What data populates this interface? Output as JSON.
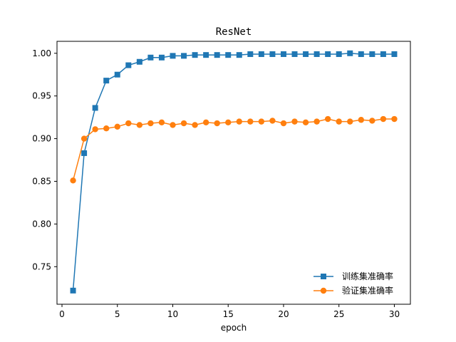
{
  "chart_data": {
    "type": "line",
    "title": "ResNet",
    "xlabel": "epoch",
    "ylabel": "",
    "xlim": [
      -0.45,
      31.45
    ],
    "ylim": [
      0.706,
      1.014
    ],
    "xticks": [
      0,
      5,
      10,
      15,
      20,
      25,
      30
    ],
    "yticks": [
      0.75,
      0.8,
      0.85,
      0.9,
      0.95,
      1.0
    ],
    "ytick_labels": [
      "0.75",
      "0.80",
      "0.85",
      "0.90",
      "0.95",
      "1.00"
    ],
    "grid": false,
    "legend_position": "lower right",
    "x": [
      1,
      2,
      3,
      4,
      5,
      6,
      7,
      8,
      9,
      10,
      11,
      12,
      13,
      14,
      15,
      16,
      17,
      18,
      19,
      20,
      21,
      22,
      23,
      24,
      25,
      26,
      27,
      28,
      29,
      30
    ],
    "series": [
      {
        "name": "训练集准确率",
        "color": "#1f77b4",
        "marker": "square",
        "values": [
          0.722,
          0.883,
          0.936,
          0.968,
          0.975,
          0.986,
          0.99,
          0.995,
          0.995,
          0.997,
          0.997,
          0.998,
          0.998,
          0.998,
          0.998,
          0.998,
          0.999,
          0.999,
          0.999,
          0.999,
          0.999,
          0.999,
          0.999,
          0.999,
          0.999,
          1.0,
          0.999,
          0.999,
          0.999,
          0.999
        ]
      },
      {
        "name": "验证集准确率",
        "color": "#ff7f0e",
        "marker": "circle",
        "values": [
          0.851,
          0.9,
          0.911,
          0.912,
          0.914,
          0.918,
          0.916,
          0.918,
          0.919,
          0.916,
          0.918,
          0.916,
          0.919,
          0.918,
          0.919,
          0.92,
          0.92,
          0.92,
          0.921,
          0.918,
          0.92,
          0.919,
          0.92,
          0.923,
          0.92,
          0.92,
          0.922,
          0.921,
          0.923,
          0.923
        ]
      }
    ]
  }
}
